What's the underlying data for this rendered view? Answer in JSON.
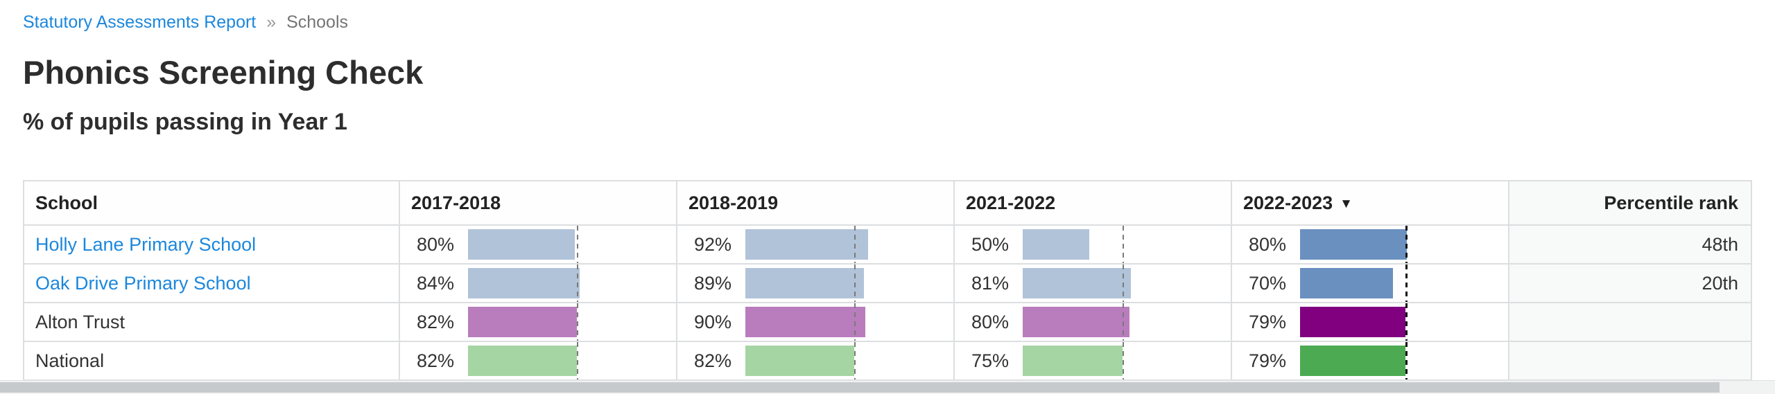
{
  "breadcrumb": {
    "link_label": "Statutory Assessments Report",
    "separator": "»",
    "current": "Schools"
  },
  "page": {
    "title": "Phonics Screening Check",
    "subtitle": "% of pupils passing in Year 1"
  },
  "table": {
    "columns": {
      "school": "School",
      "years": [
        "2017-2018",
        "2018-2019",
        "2021-2022",
        "2022-2023"
      ],
      "sort_icon": "▼",
      "percentile": "Percentile rank"
    },
    "benchmarks": [
      82,
      82,
      75,
      79
    ],
    "rows": [
      {
        "school": "Holly Lane Primary School",
        "cells": [
          {
            "label": "80%",
            "value": 80
          },
          {
            "label": "92%",
            "value": 92
          },
          {
            "label": "50%",
            "value": 50
          },
          {
            "label": "80%",
            "value": 80
          }
        ],
        "percentile": "48th"
      },
      {
        "school": "Oak Drive Primary School",
        "cells": [
          {
            "label": "84%",
            "value": 84
          },
          {
            "label": "89%",
            "value": 89
          },
          {
            "label": "81%",
            "value": 81
          },
          {
            "label": "70%",
            "value": 70
          }
        ],
        "percentile": "20th"
      },
      {
        "school": "Alton Trust",
        "cells": [
          {
            "label": "82%",
            "value": 82
          },
          {
            "label": "90%",
            "value": 90
          },
          {
            "label": "80%",
            "value": 80
          },
          {
            "label": "79%",
            "value": 79
          }
        ],
        "percentile": ""
      },
      {
        "school": "National",
        "cells": [
          {
            "label": "82%",
            "value": 82
          },
          {
            "label": "82%",
            "value": 82
          },
          {
            "label": "75%",
            "value": 75
          },
          {
            "label": "79%",
            "value": 79
          }
        ],
        "percentile": ""
      }
    ]
  },
  "colors": {
    "link": "#1c87dc",
    "school_bar": "#b1c3d9",
    "school_bar_current": "#6a90c0",
    "trust_bar": "#b97dbd",
    "trust_bar_current": "#800080",
    "national_bar": "#a5d5a2",
    "national_bar_current": "#4cab52",
    "benchmark_line": "#7a7a7a",
    "benchmark_line_current": "#141414"
  }
}
